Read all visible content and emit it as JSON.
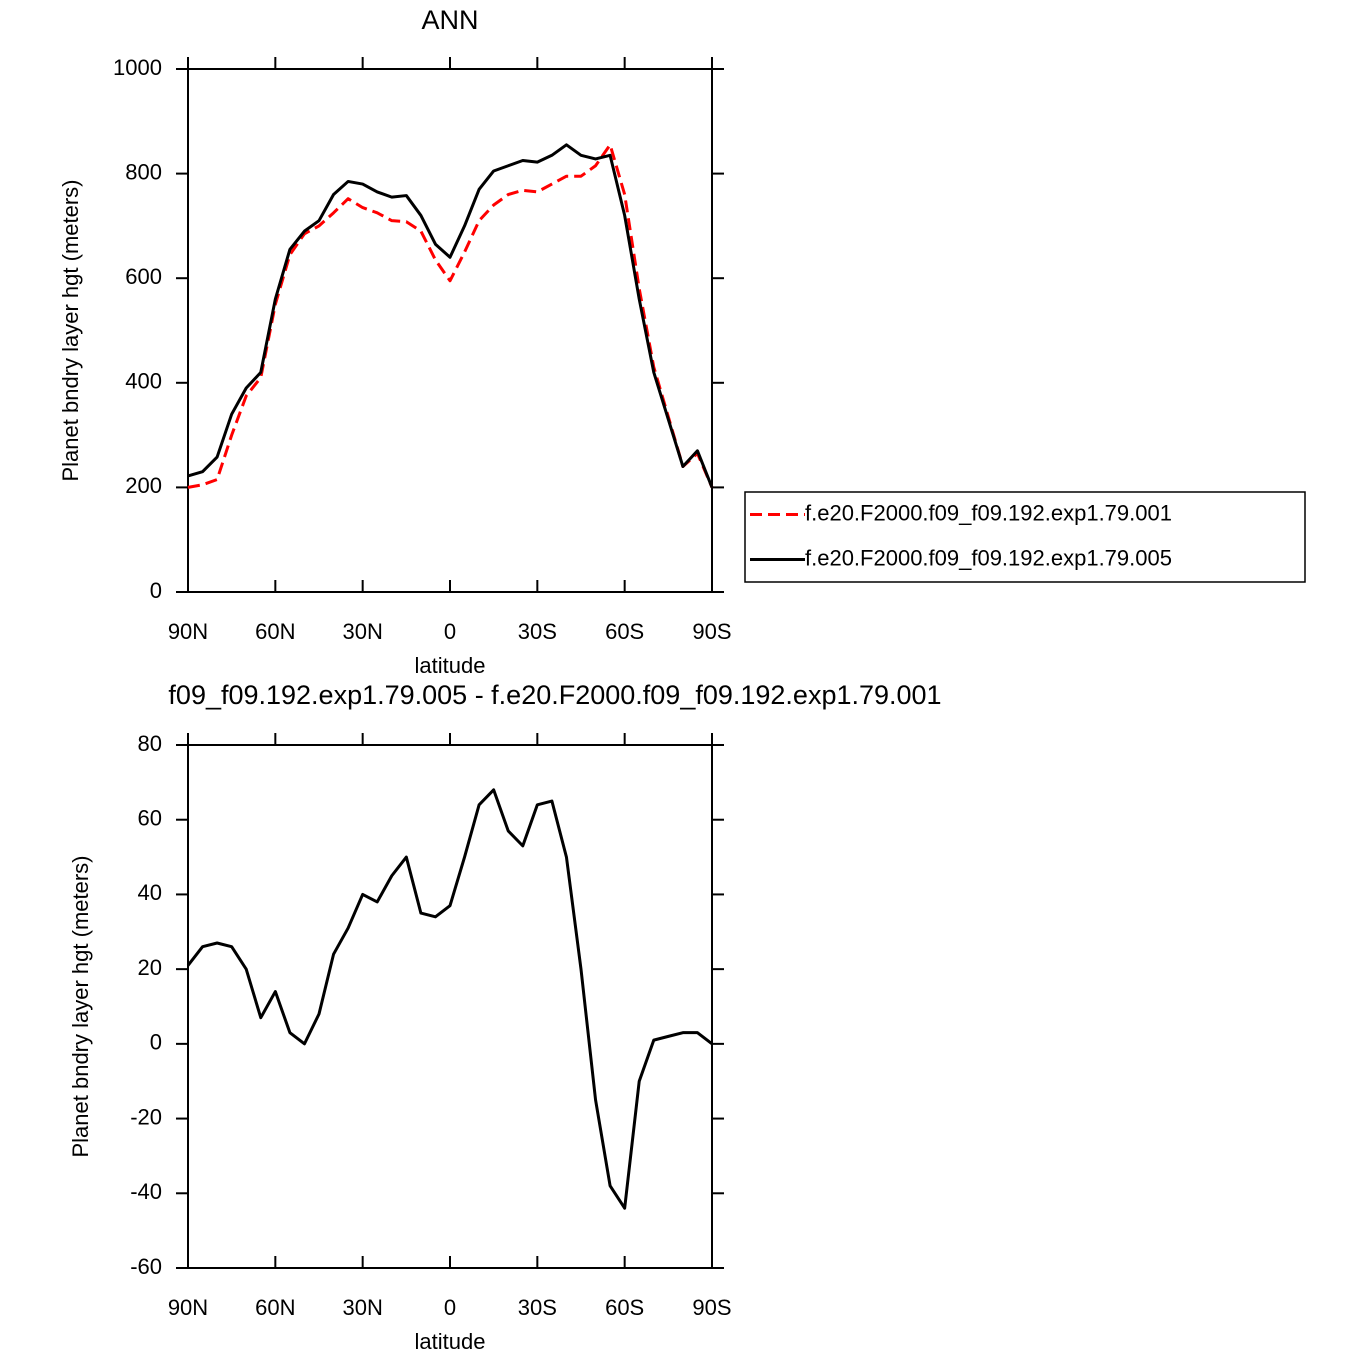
{
  "chart_data": [
    {
      "type": "line",
      "title": "ANN",
      "xlabel": "latitude",
      "ylabel": "Planet bndry layer hgt (meters)",
      "x": [
        90,
        85,
        80,
        75,
        70,
        65,
        60,
        55,
        50,
        45,
        40,
        35,
        30,
        25,
        20,
        15,
        10,
        5,
        0,
        -5,
        -10,
        -15,
        -20,
        -25,
        -30,
        -35,
        -40,
        -45,
        -50,
        -55,
        -60,
        -65,
        -70,
        -75,
        -80,
        -85,
        -90
      ],
      "xlim": [
        90,
        -90
      ],
      "xticks": [
        {
          "value": 90,
          "label": "90N"
        },
        {
          "value": 60,
          "label": "60N"
        },
        {
          "value": 30,
          "label": "30N"
        },
        0,
        {
          "value": -30,
          "label": "30S"
        },
        {
          "value": -60,
          "label": "60S"
        },
        {
          "value": -90,
          "label": "90S"
        }
      ],
      "ylim": [
        0,
        1000
      ],
      "yticks": [
        0,
        200,
        400,
        600,
        800,
        1000
      ],
      "legend": "right",
      "series": [
        {
          "name": "f.e20.F2000.f09_f09.192.exp1.79.001",
          "color": "#ff0000",
          "style": "dashed",
          "values": [
            200,
            205,
            215,
            300,
            375,
            410,
            550,
            645,
            685,
            700,
            725,
            752,
            735,
            725,
            710,
            708,
            690,
            635,
            595,
            650,
            710,
            740,
            760,
            768,
            765,
            780,
            795,
            795,
            815,
            855,
            760,
            580,
            430,
            335,
            240,
            265,
            200
          ]
        },
        {
          "name": "f.e20.F2000.f09_f09.192.exp1.79.005",
          "color": "#000000",
          "style": "solid",
          "values": [
            222,
            230,
            258,
            340,
            390,
            420,
            560,
            655,
            690,
            710,
            760,
            785,
            780,
            765,
            755,
            758,
            720,
            665,
            640,
            700,
            770,
            805,
            815,
            825,
            822,
            835,
            855,
            835,
            828,
            835,
            720,
            560,
            420,
            330,
            240,
            270,
            200
          ]
        }
      ]
    },
    {
      "type": "line",
      "title": "f09_f09.192.exp1.79.005 - f.e20.F2000.f09_f09.192.exp1.79.001",
      "xlabel": "latitude",
      "ylabel": "Planet bndry layer hgt (meters)",
      "x": [
        90,
        85,
        80,
        75,
        70,
        65,
        60,
        55,
        50,
        45,
        40,
        35,
        30,
        25,
        20,
        15,
        10,
        5,
        0,
        -5,
        -10,
        -15,
        -20,
        -25,
        -30,
        -35,
        -40,
        -45,
        -50,
        -55,
        -60,
        -65,
        -70,
        -75,
        -80,
        -85,
        -90
      ],
      "xlim": [
        90,
        -90
      ],
      "xticks": [
        {
          "value": 90,
          "label": "90N"
        },
        {
          "value": 60,
          "label": "60N"
        },
        {
          "value": 30,
          "label": "30N"
        },
        0,
        {
          "value": -30,
          "label": "30S"
        },
        {
          "value": -60,
          "label": "60S"
        },
        {
          "value": -90,
          "label": "90S"
        }
      ],
      "ylim": [
        -60,
        80
      ],
      "yticks": [
        -60,
        -40,
        -20,
        0,
        20,
        40,
        60,
        80
      ],
      "series": [
        {
          "color": "#000000",
          "style": "solid",
          "values": [
            21,
            26,
            27,
            26,
            20,
            7,
            14,
            3,
            0,
            8,
            24,
            31,
            40,
            38,
            45,
            50,
            35,
            34,
            37,
            50,
            64,
            68,
            57,
            53,
            64,
            65,
            50,
            20,
            -15,
            -38,
            -44,
            -10,
            1,
            2,
            3,
            3,
            0
          ]
        }
      ]
    }
  ]
}
